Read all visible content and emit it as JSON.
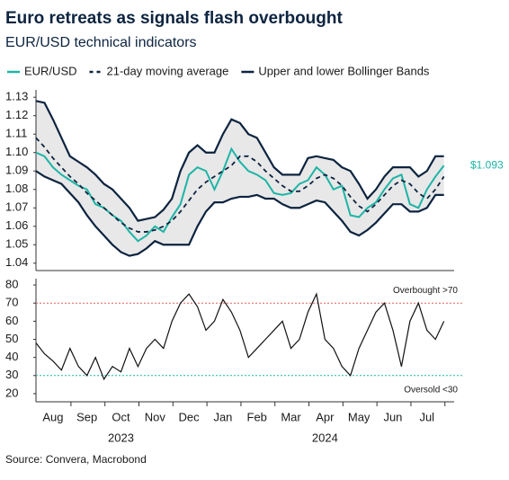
{
  "chart_data": [
    {
      "type": "line",
      "title": "Euro retreats as signals flash overbought",
      "subtitle": "EUR/USD technical indicators",
      "x": [
        0,
        0.25,
        0.5,
        0.75,
        1,
        1.25,
        1.5,
        1.75,
        2,
        2.25,
        2.5,
        2.75,
        3,
        3.25,
        3.5,
        3.75,
        4,
        4.25,
        4.5,
        4.75,
        5,
        5.25,
        5.5,
        5.75,
        6,
        6.25,
        6.5,
        6.75,
        7,
        7.25,
        7.5,
        7.75,
        8,
        8.25,
        8.5,
        8.75,
        9,
        9.25,
        9.5,
        9.75,
        10,
        10.25,
        10.5,
        10.75,
        11,
        11.25,
        11.5,
        11.75,
        12
      ],
      "xlim": [
        0,
        12.3
      ],
      "ylim": [
        1.036,
        1.134
      ],
      "yticks": [
        1.04,
        1.05,
        1.06,
        1.07,
        1.08,
        1.09,
        {
          "value": 1.1,
          "label": "1.10"
        },
        1.11,
        1.12,
        1.13
      ],
      "series": [
        {
          "name": "EUR/USD",
          "color": "#1db5a6",
          "values": [
            1.1,
            1.098,
            1.092,
            1.088,
            1.085,
            1.082,
            1.08,
            1.072,
            1.07,
            1.066,
            1.063,
            1.057,
            1.052,
            1.055,
            1.06,
            1.057,
            1.065,
            1.072,
            1.088,
            1.092,
            1.09,
            1.08,
            1.09,
            1.102,
            1.095,
            1.09,
            1.088,
            1.085,
            1.078,
            1.077,
            1.078,
            1.083,
            1.085,
            1.092,
            1.088,
            1.08,
            1.082,
            1.066,
            1.065,
            1.07,
            1.073,
            1.08,
            1.086,
            1.088,
            1.072,
            1.07,
            1.08,
            1.087,
            1.093
          ]
        },
        {
          "name": "21-day moving average",
          "color": "#0d2440",
          "dashed": true,
          "values": [
            1.108,
            1.103,
            1.097,
            1.092,
            1.087,
            1.083,
            1.078,
            1.074,
            1.07,
            1.066,
            1.062,
            1.059,
            1.057,
            1.057,
            1.058,
            1.06,
            1.063,
            1.068,
            1.074,
            1.08,
            1.084,
            1.087,
            1.09,
            1.093,
            1.098,
            1.098,
            1.095,
            1.09,
            1.086,
            1.082,
            1.079,
            1.079,
            1.082,
            1.086,
            1.088,
            1.086,
            1.082,
            1.076,
            1.071,
            1.068,
            1.072,
            1.077,
            1.082,
            1.085,
            1.083,
            1.078,
            1.075,
            1.08,
            1.087
          ]
        },
        {
          "name": "Upper and lower Bollinger Bands",
          "color": "#0d2440",
          "band_fill": "#e8e8e8",
          "upper": [
            1.128,
            1.127,
            1.118,
            1.108,
            1.098,
            1.095,
            1.092,
            1.088,
            1.083,
            1.08,
            1.075,
            1.07,
            1.063,
            1.064,
            1.065,
            1.069,
            1.075,
            1.09,
            1.1,
            1.104,
            1.1,
            1.1,
            1.11,
            1.118,
            1.116,
            1.11,
            1.108,
            1.1,
            1.092,
            1.088,
            1.088,
            1.088,
            1.097,
            1.098,
            1.097,
            1.096,
            1.092,
            1.09,
            1.083,
            1.075,
            1.08,
            1.087,
            1.092,
            1.092,
            1.092,
            1.087,
            1.09,
            1.098,
            1.098
          ],
          "lower": [
            1.09,
            1.087,
            1.085,
            1.083,
            1.078,
            1.073,
            1.066,
            1.06,
            1.055,
            1.05,
            1.046,
            1.044,
            1.045,
            1.048,
            1.052,
            1.05,
            1.05,
            1.05,
            1.05,
            1.06,
            1.068,
            1.073,
            1.073,
            1.075,
            1.076,
            1.076,
            1.077,
            1.075,
            1.075,
            1.072,
            1.07,
            1.07,
            1.072,
            1.074,
            1.073,
            1.068,
            1.063,
            1.057,
            1.055,
            1.058,
            1.062,
            1.067,
            1.072,
            1.072,
            1.068,
            1.068,
            1.07,
            1.077,
            1.077
          ]
        }
      ],
      "end_label": "$1.093"
    },
    {
      "type": "line",
      "x": [
        0,
        0.25,
        0.5,
        0.75,
        1,
        1.25,
        1.5,
        1.75,
        2,
        2.25,
        2.5,
        2.75,
        3,
        3.25,
        3.5,
        3.75,
        4,
        4.25,
        4.5,
        4.75,
        5,
        5.25,
        5.5,
        5.75,
        6,
        6.25,
        6.5,
        6.75,
        7,
        7.25,
        7.5,
        7.75,
        8,
        8.25,
        8.5,
        8.75,
        9,
        9.25,
        9.5,
        9.75,
        10,
        10.25,
        10.5,
        10.75,
        11,
        11.25,
        11.5,
        11.75,
        12
      ],
      "xlim": [
        0,
        12.3
      ],
      "xticks": [
        {
          "value": 0.5,
          "label": "Aug"
        },
        {
          "value": 1.5,
          "label": "Sep"
        },
        {
          "value": 2.5,
          "label": "Oct"
        },
        {
          "value": 3.5,
          "label": "Nov"
        },
        {
          "value": 4.5,
          "label": "Dec"
        },
        {
          "value": 5.5,
          "label": "Jan"
        },
        {
          "value": 6.5,
          "label": "Feb"
        },
        {
          "value": 7.5,
          "label": "Mar"
        },
        {
          "value": 8.5,
          "label": "Apr"
        },
        {
          "value": 9.5,
          "label": "May"
        },
        {
          "value": 10.5,
          "label": "Jun"
        },
        {
          "value": 11.5,
          "label": "Jul"
        }
      ],
      "year_labels": [
        {
          "value": 2.5,
          "label": "2023"
        },
        {
          "value": 8.5,
          "label": "2024"
        }
      ],
      "ylim": [
        15.5,
        83.5
      ],
      "yticks": [
        20,
        30,
        40,
        50,
        60,
        70,
        80
      ],
      "series": [
        {
          "color": "#111111",
          "values": [
            48,
            42,
            38,
            33,
            45,
            35,
            30,
            40,
            28,
            35,
            32,
            45,
            35,
            45,
            50,
            45,
            60,
            70,
            75,
            68,
            55,
            60,
            72,
            65,
            55,
            40,
            45,
            50,
            55,
            60,
            45,
            50,
            65,
            75,
            50,
            45,
            35,
            30,
            45,
            55,
            65,
            70,
            55,
            35,
            60,
            70,
            55,
            50,
            60
          ]
        }
      ],
      "reference_lines": [
        {
          "value": 70,
          "label": "Overbought >70",
          "color": "#e0615a"
        },
        {
          "value": 30,
          "label": "Oversold <30",
          "color": "#1db5a6"
        }
      ],
      "source": "Source: Convera, Macrobond"
    }
  ]
}
